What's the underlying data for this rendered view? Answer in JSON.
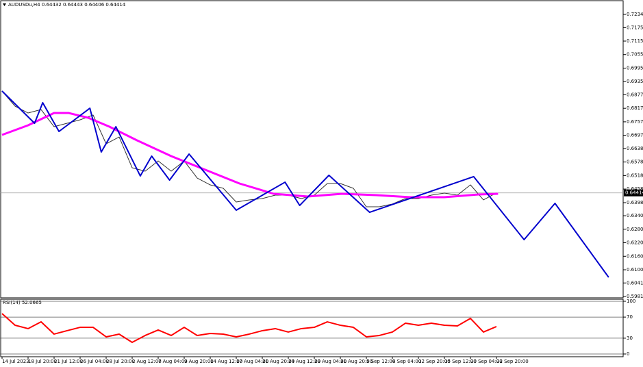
{
  "chart_data": [
    {
      "type": "line",
      "title": "AUDUSDu,H4  0.64432 0.64443 0.64406 0.64414",
      "current_price": 0.64414,
      "xlim": [
        -1.26,
        381.9
      ],
      "ylim": [
        0.59754,
        0.72918
      ],
      "yticks": [
        {
          "value": 0.7234,
          "label": "0.72340"
        },
        {
          "value": 0.7175,
          "label": "0.71750"
        },
        {
          "value": 0.71155,
          "label": "0.71155"
        },
        {
          "value": 0.70555,
          "label": "0.70555"
        },
        {
          "value": 0.69955,
          "label": "0.69955"
        },
        {
          "value": 0.69355,
          "label": "0.69355"
        },
        {
          "value": 0.6877,
          "label": "0.68770"
        },
        {
          "value": 0.6817,
          "label": "0.68170"
        },
        {
          "value": 0.6757,
          "label": "0.67570"
        },
        {
          "value": 0.6697,
          "label": "0.66970"
        },
        {
          "value": 0.66385,
          "label": "0.66385"
        },
        {
          "value": 0.65785,
          "label": "0.65785"
        },
        {
          "value": 0.65185,
          "label": "0.65185"
        },
        {
          "value": 0.64585,
          "label": "0.64585"
        },
        {
          "value": 0.6398,
          "label": "0.63980"
        },
        {
          "value": 0.634,
          "label": "0.63400"
        },
        {
          "value": 0.628,
          "label": "0.62800"
        },
        {
          "value": 0.622,
          "label": "0.62200"
        },
        {
          "value": 0.616,
          "label": "0.61600"
        },
        {
          "value": 0.61,
          "label": "0.61000"
        },
        {
          "value": 0.60415,
          "label": "0.60415"
        },
        {
          "value": 0.59815,
          "label": "0.59815"
        }
      ],
      "series": [
        {
          "color": "#333333",
          "width": 1,
          "x": [
            0,
            8,
            16,
            24,
            32,
            40,
            48,
            56,
            64,
            72,
            80,
            88,
            96,
            104,
            112,
            120,
            128,
            136,
            144,
            152,
            160,
            168,
            176,
            184,
            192,
            200,
            208,
            216,
            224,
            232,
            240,
            248,
            256,
            264,
            272,
            280,
            288,
            296,
            304
          ],
          "values": [
            0.68935,
            0.68266,
            0.67962,
            0.68114,
            0.67354,
            0.67506,
            0.67658,
            0.67871,
            0.66594,
            0.66898,
            0.6553,
            0.65378,
            0.65834,
            0.65378,
            0.65834,
            0.65074,
            0.6477,
            0.64618,
            0.6401,
            0.64102,
            0.64162,
            0.64314,
            0.64314,
            0.64162,
            0.64314,
            0.64831,
            0.64831,
            0.64618,
            0.63798,
            0.63798,
            0.63919,
            0.64162,
            0.64162,
            0.64314,
            0.64406,
            0.64314,
            0.6477,
            0.64102,
            0.64414
          ]
        },
        {
          "color": "#ff00ff",
          "width": 3,
          "x": [
            0,
            16,
            32,
            41,
            53,
            66,
            83,
            104,
            125,
            146,
            167,
            188,
            209,
            230,
            251,
            272,
            293,
            305
          ],
          "values": [
            0.6699,
            0.67415,
            0.67962,
            0.67962,
            0.6775,
            0.67354,
            0.66746,
            0.66047,
            0.65439,
            0.64831,
            0.64375,
            0.64254,
            0.64375,
            0.64314,
            0.64223,
            0.64223,
            0.64345,
            0.64375
          ]
        },
        {
          "color": "#0000cd",
          "width": 2,
          "x": [
            0,
            20,
            25,
            35,
            54,
            61,
            70,
            85,
            92,
            103,
            115,
            144,
            174,
            183,
            201,
            226,
            290,
            321,
            340,
            373
          ],
          "values": [
            0.68935,
            0.67506,
            0.68418,
            0.67142,
            0.68175,
            0.6623,
            0.67354,
            0.65166,
            0.66047,
            0.64983,
            0.66138,
            0.63646,
            0.6489,
            0.63858,
            0.65196,
            0.63554,
            0.65136,
            0.62338,
            0.6395,
            0.60666
          ]
        }
      ]
    },
    {
      "type": "line",
      "title": "RSI(14) 52.0665",
      "xlim": [
        -1.26,
        381.9
      ],
      "ylim": [
        0,
        100
      ],
      "yticks": [
        100,
        70,
        30,
        0
      ],
      "xticks": [
        {
          "value": 0,
          "label": "14 Jul 2023"
        },
        {
          "value": 16,
          "label": "18 Jul 20:00"
        },
        {
          "value": 32,
          "label": "21 Jul 12:00"
        },
        {
          "value": 48,
          "label": "26 Jul 04:00"
        },
        {
          "value": 64,
          "label": "28 Jul 20:00"
        },
        {
          "value": 80,
          "label": "2 Aug 12:00"
        },
        {
          "value": 96,
          "label": "7 Aug 04:00"
        },
        {
          "value": 112,
          "label": "9 Aug 20:00"
        },
        {
          "value": 128,
          "label": "14 Aug 12:00"
        },
        {
          "value": 144,
          "label": "17 Aug 04:00"
        },
        {
          "value": 160,
          "label": "21 Aug 20:00"
        },
        {
          "value": 176,
          "label": "24 Aug 12:00"
        },
        {
          "value": 192,
          "label": "29 Aug 04:00"
        },
        {
          "value": 208,
          "label": "31 Aug 20:00"
        },
        {
          "value": 224,
          "label": "5 Sep 12:00"
        },
        {
          "value": 240,
          "label": "8 Sep 04:00"
        },
        {
          "value": 256,
          "label": "12 Sep 20:00"
        },
        {
          "value": 272,
          "label": "15 Sep 12:00"
        },
        {
          "value": 288,
          "label": "20 Sep 04:00"
        },
        {
          "value": 304,
          "label": "22 Sep 20:00"
        }
      ],
      "series": [
        {
          "color": "#ff0000",
          "width": 2,
          "x": [
            0,
            8,
            16,
            24,
            32,
            40,
            48,
            56,
            64,
            72,
            80,
            88,
            96,
            104,
            112,
            120,
            128,
            136,
            144,
            152,
            160,
            168,
            176,
            184,
            192,
            200,
            208,
            216,
            224,
            232,
            240,
            248,
            256,
            264,
            272,
            280,
            288,
            296,
            304
          ],
          "values": [
            76.6,
            54.5,
            48.1,
            61,
            37.7,
            44.2,
            50.6,
            50.6,
            32.5,
            37.7,
            22.1,
            35.1,
            45.5,
            35.1,
            50.6,
            35.1,
            39,
            37.7,
            32.5,
            37.7,
            44.2,
            48.1,
            41.6,
            48.1,
            50.6,
            61,
            54.5,
            50.6,
            32.5,
            35.1,
            41.6,
            58.4,
            54.5,
            58.4,
            54.5,
            53.2,
            67.5,
            41.6,
            52.0665
          ]
        }
      ]
    }
  ]
}
